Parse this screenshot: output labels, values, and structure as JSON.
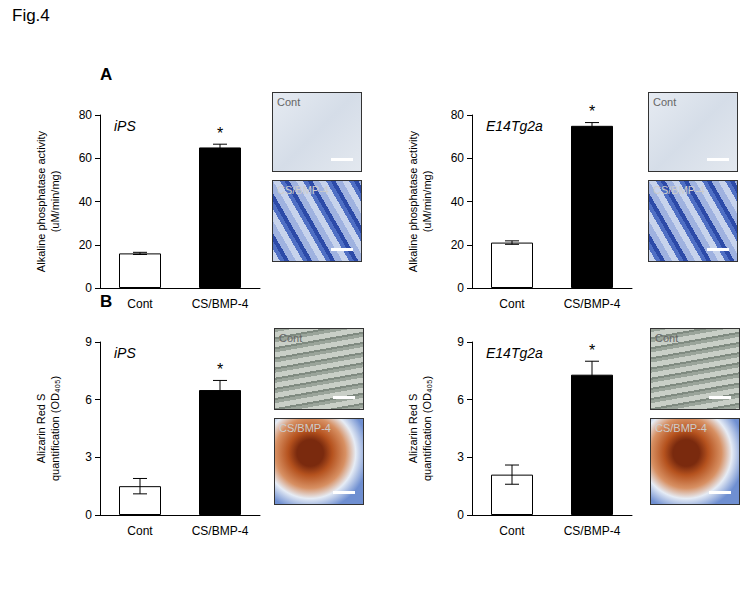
{
  "figure_title": "Fig.4",
  "panel_labels": [
    "A",
    "B"
  ],
  "chart_data": [
    {
      "type": "bar",
      "panel": "A",
      "title": "iPS",
      "ylabel": "Alkaline phosphatase activity\n(uM/min/mg)",
      "categories": [
        "Cont",
        "CS/BMP-4"
      ],
      "values": [
        16,
        65
      ],
      "errors": [
        0.5,
        1.5
      ],
      "colors": [
        "#ffffff",
        "#000000"
      ],
      "ylim": [
        0,
        80
      ],
      "yticks": [
        0,
        20,
        40,
        60,
        80
      ],
      "grid": false,
      "annotations": [
        {
          "category": "CS/BMP-4",
          "text": "*"
        }
      ],
      "images": [
        "Cont",
        "CS/BMP-4"
      ]
    },
    {
      "type": "bar",
      "panel": "A",
      "title": "E14Tg2a",
      "ylabel": "Alkaline phosphatase activity\n(uM/min/mg)",
      "categories": [
        "Cont",
        "CS/BMP-4"
      ],
      "values": [
        21,
        75
      ],
      "errors": [
        0.8,
        1.5
      ],
      "colors": [
        "#ffffff",
        "#000000"
      ],
      "ylim": [
        0,
        80
      ],
      "yticks": [
        0,
        20,
        40,
        60,
        80
      ],
      "grid": false,
      "annotations": [
        {
          "category": "CS/BMP-4",
          "text": "*"
        }
      ],
      "images": [
        "Cont",
        "CS/BMP-4"
      ]
    },
    {
      "type": "bar",
      "panel": "B",
      "title": "iPS",
      "ylabel": "Alizarin Red S\nquantification (OD₄₀₅)",
      "categories": [
        "Cont",
        "CS/BMP-4"
      ],
      "values": [
        1.5,
        6.5
      ],
      "errors": [
        0.4,
        0.5
      ],
      "colors": [
        "#ffffff",
        "#000000"
      ],
      "ylim": [
        0,
        9
      ],
      "yticks": [
        0,
        3,
        6,
        9
      ],
      "grid": false,
      "annotations": [
        {
          "category": "CS/BMP-4",
          "text": "*"
        }
      ],
      "images": [
        "Cont",
        "CS/BMP-4"
      ]
    },
    {
      "type": "bar",
      "panel": "B",
      "title": "E14Tg2a",
      "ylabel": "Alizarin Red S\nquantification (OD₄₀₅)",
      "categories": [
        "Cont",
        "CS/BMP-4"
      ],
      "values": [
        2.1,
        7.3
      ],
      "errors": [
        0.5,
        0.7
      ],
      "colors": [
        "#ffffff",
        "#000000"
      ],
      "ylim": [
        0,
        9
      ],
      "yticks": [
        0,
        3,
        6,
        9
      ],
      "grid": false,
      "annotations": [
        {
          "category": "CS/BMP-4",
          "text": "*"
        }
      ],
      "images": [
        "Cont",
        "CS/BMP-4"
      ]
    }
  ]
}
